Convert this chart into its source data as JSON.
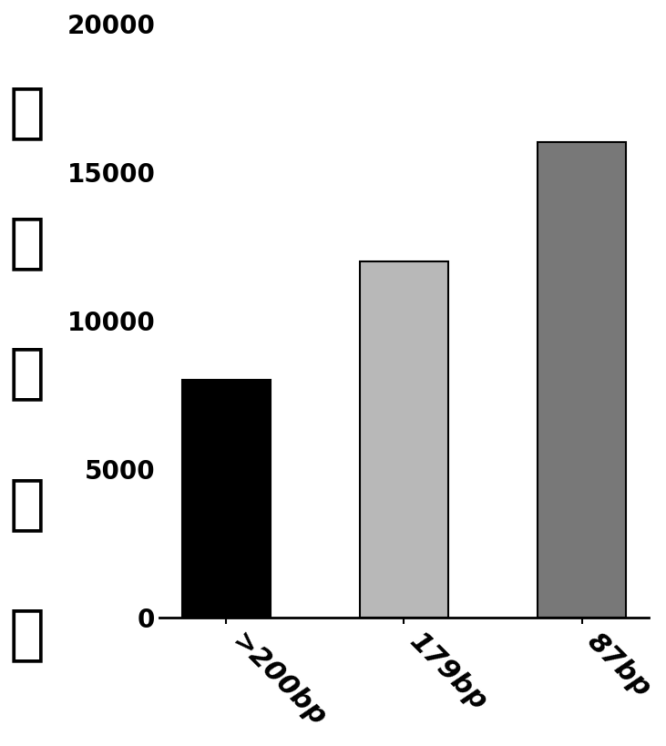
{
  "categories": [
    ">200bp",
    "179bp",
    "87bp"
  ],
  "values": [
    8000,
    12000,
    16000
  ],
  "bar_colors": [
    "#000000",
    "#b8b8b8",
    "#787878"
  ],
  "bar_edge_colors": [
    "#000000",
    "#000000",
    "#000000"
  ],
  "ylabel": "有效液滤数",
  "ylim": [
    0,
    20000
  ],
  "yticks": [
    0,
    5000,
    10000,
    15000,
    20000
  ],
  "ytick_labels": [
    "0",
    "5000",
    "10000",
    "15000",
    "20000"
  ],
  "bar_width": 0.5,
  "xlabel_rotation": -45,
  "background_color": "#ffffff",
  "tick_fontsize": 20,
  "ylabel_fontsize": 48,
  "xlabel_fontsize": 22,
  "edge_linewidth": 1.5,
  "spine_linewidth": 2.0
}
